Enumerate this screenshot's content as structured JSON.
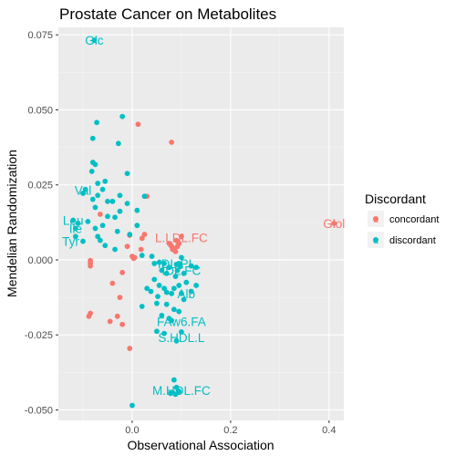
{
  "chart_data": {
    "type": "scatter",
    "title": "Prostate Cancer on Metabolites",
    "xlabel": "Observational Association",
    "ylabel": "Mendelian Randomization",
    "xlim": [
      -0.15,
      0.43
    ],
    "ylim": [
      -0.0535,
      0.0775
    ],
    "x_ticks": [
      0.0,
      0.2,
      0.4
    ],
    "x_tick_labels": [
      "0.0",
      "0.2",
      "0.4"
    ],
    "y_ticks": [
      -0.05,
      -0.025,
      0.0,
      0.025,
      0.05,
      0.075
    ],
    "y_tick_labels": [
      "-0.050",
      "-0.025",
      "0.000",
      "0.025",
      "0.050",
      "0.075"
    ],
    "grid": true,
    "legend": {
      "title": "Discordant",
      "position": "right",
      "entries": [
        {
          "label": "concordant",
          "color": "#F8766D"
        },
        {
          "label": "discordant",
          "color": "#00BFC4"
        }
      ]
    },
    "series": [
      {
        "name": "concordant",
        "color": "#F8766D",
        "points": [
          [
            0.41,
            0.0122
          ],
          [
            0.08,
            0.0392
          ],
          [
            0.012,
            0.0452
          ],
          [
            0.03,
            0.0212
          ],
          [
            0.025,
            0.0085
          ],
          [
            0.02,
            0.0072
          ],
          [
            0.018,
            0.0035
          ],
          [
            0.005,
            0.0008
          ],
          [
            0.003,
            0.0005
          ],
          [
            0.0,
            0.0012
          ],
          [
            -0.005,
            0.0082
          ],
          [
            -0.01,
            0.0045
          ],
          [
            -0.065,
            0.0152
          ],
          [
            -0.085,
            -0.0002
          ],
          [
            -0.085,
            -0.001
          ],
          [
            -0.085,
            -0.002
          ],
          [
            -0.02,
            -0.0042
          ],
          [
            -0.04,
            -0.0078
          ],
          [
            -0.025,
            -0.0125
          ],
          [
            -0.085,
            -0.0178
          ],
          [
            -0.088,
            -0.0188
          ],
          [
            -0.03,
            -0.0188
          ],
          [
            -0.02,
            -0.0215
          ],
          [
            -0.045,
            -0.0205
          ],
          [
            -0.005,
            -0.0295
          ],
          [
            0.075,
            0.0055
          ],
          [
            0.08,
            0.0045
          ],
          [
            0.085,
            0.0038
          ],
          [
            0.09,
            0.0065
          ],
          [
            0.092,
            0.0045
          ],
          [
            0.095,
            0.0055
          ],
          [
            0.082,
            0.0035
          ],
          [
            0.1,
            0.0078
          ],
          [
            0.088,
            0.0028
          ],
          [
            0.078,
            0.005
          ],
          [
            0.093,
            0.006
          ]
        ],
        "labels": [
          {
            "text": "Glol",
            "x": 0.41,
            "y": 0.0122
          },
          {
            "text": "L.LDL.FC",
            "x": 0.1,
            "y": 0.0075
          }
        ]
      },
      {
        "name": "discordant",
        "color": "#00BFC4",
        "points": [
          [
            -0.077,
            0.0732
          ],
          [
            -0.02,
            0.0478
          ],
          [
            -0.072,
            0.0458
          ],
          [
            -0.08,
            0.0405
          ],
          [
            -0.028,
            0.0388
          ],
          [
            -0.08,
            0.0325
          ],
          [
            -0.075,
            0.0318
          ],
          [
            -0.082,
            0.0295
          ],
          [
            -0.01,
            0.0288
          ],
          [
            -0.07,
            0.0255
          ],
          [
            -0.06,
            0.0235
          ],
          [
            -0.055,
            0.0262
          ],
          [
            -0.095,
            0.0235
          ],
          [
            -0.1,
            0.0222
          ],
          [
            -0.07,
            0.0215
          ],
          [
            -0.05,
            0.0195
          ],
          [
            -0.08,
            0.0202
          ],
          [
            -0.075,
            0.0175
          ],
          [
            -0.04,
            0.0195
          ],
          [
            -0.025,
            0.0215
          ],
          [
            -0.01,
            0.0188
          ],
          [
            0.025,
            0.0212
          ],
          [
            0.01,
            0.0165
          ],
          [
            -0.025,
            0.0162
          ],
          [
            -0.035,
            0.0142
          ],
          [
            -0.12,
            0.0132
          ],
          [
            -0.11,
            0.0122
          ],
          [
            -0.09,
            0.0128
          ],
          [
            -0.06,
            0.0115
          ],
          [
            -0.05,
            0.0145
          ],
          [
            -0.115,
            0.0105
          ],
          [
            -0.075,
            0.0105
          ],
          [
            -0.03,
            0.0095
          ],
          [
            -0.005,
            0.0085
          ],
          [
            0.01,
            0.0115
          ],
          [
            -0.115,
            0.0078
          ],
          [
            -0.1,
            0.0062
          ],
          [
            -0.07,
            0.0078
          ],
          [
            -0.065,
            0.0065
          ],
          [
            -0.055,
            0.0048
          ],
          [
            -0.035,
            0.0035
          ],
          [
            0.04,
            0.0012
          ],
          [
            0.02,
            0.0015
          ],
          [
            0.045,
            -0.0012
          ],
          [
            0.055,
            -0.0008
          ],
          [
            0.065,
            -0.0012
          ],
          [
            0.06,
            -0.0035
          ],
          [
            0.07,
            -0.0045
          ],
          [
            0.075,
            -0.0025
          ],
          [
            0.09,
            -0.0015
          ],
          [
            0.095,
            -0.0012
          ],
          [
            0.1,
            0.0008
          ],
          [
            0.088,
            -0.0055
          ],
          [
            0.092,
            -0.0035
          ],
          [
            0.098,
            -0.0022
          ],
          [
            0.105,
            -0.0045
          ],
          [
            0.12,
            -0.002
          ],
          [
            0.13,
            -0.0025
          ],
          [
            0.045,
            -0.0065
          ],
          [
            0.055,
            -0.0085
          ],
          [
            0.03,
            -0.0095
          ],
          [
            0.038,
            -0.0105
          ],
          [
            0.052,
            -0.0122
          ],
          [
            0.065,
            -0.0095
          ],
          [
            0.07,
            -0.0108
          ],
          [
            0.08,
            -0.0112
          ],
          [
            0.085,
            -0.0095
          ],
          [
            0.095,
            -0.0085
          ],
          [
            0.11,
            -0.0075
          ],
          [
            0.12,
            -0.0105
          ],
          [
            0.13,
            -0.0085
          ],
          [
            0.1,
            -0.0112
          ],
          [
            0.105,
            -0.0132
          ],
          [
            0.02,
            -0.0155
          ],
          [
            0.05,
            -0.0145
          ],
          [
            0.07,
            -0.0148
          ],
          [
            0.085,
            -0.0165
          ],
          [
            0.095,
            -0.0172
          ],
          [
            0.06,
            -0.0185
          ],
          [
            0.075,
            -0.0195
          ],
          [
            0.08,
            -0.0202
          ],
          [
            0.05,
            -0.0238
          ],
          [
            0.065,
            -0.0245
          ],
          [
            0.1,
            -0.024
          ],
          [
            0.09,
            -0.027
          ],
          [
            0.085,
            -0.04
          ],
          [
            0.09,
            -0.0425
          ],
          [
            0.082,
            -0.0442
          ],
          [
            0.095,
            -0.0438
          ],
          [
            0.078,
            -0.0445
          ],
          [
            0.088,
            -0.0448
          ],
          [
            0.0,
            -0.0485
          ]
        ],
        "labels": [
          {
            "text": "Glc",
            "x": -0.077,
            "y": 0.0732
          },
          {
            "text": "Val",
            "x": -0.1,
            "y": 0.0232
          },
          {
            "text": "Leu",
            "x": -0.12,
            "y": 0.0132
          },
          {
            "text": "Ile",
            "x": -0.115,
            "y": 0.0105
          },
          {
            "text": "Tyr",
            "x": -0.125,
            "y": 0.0062
          },
          {
            "text": "IDL.PL",
            "x": 0.09,
            "y": -0.0012
          },
          {
            "text": "IDL.FC",
            "x": 0.1,
            "y": -0.0035
          },
          {
            "text": "Alb",
            "x": 0.11,
            "y": -0.0112
          },
          {
            "text": "FAw6.FA",
            "x": 0.1,
            "y": -0.0205
          },
          {
            "text": "S.HDL.L",
            "x": 0.1,
            "y": -0.0258
          },
          {
            "text": "M.HDL.FC",
            "x": 0.1,
            "y": -0.0435
          }
        ]
      }
    ]
  }
}
